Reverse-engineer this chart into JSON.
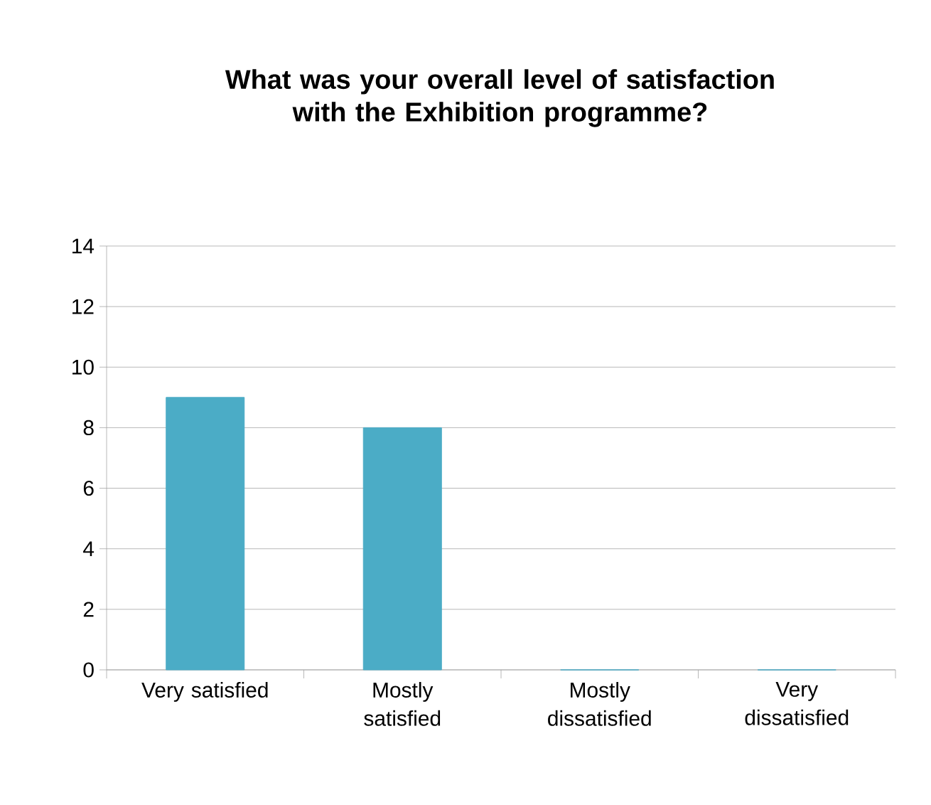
{
  "chart_data": {
    "type": "bar",
    "title": "What was your overall level of satisfaction with the Exhibition programme?",
    "categories": [
      "Very satisfied",
      "Mostly satisfied",
      "Mostly dissatisfied",
      "Very dissatisfied"
    ],
    "values": [
      9,
      8,
      0,
      0
    ],
    "color": "#4bacc6",
    "ylim": [
      0,
      14
    ],
    "yticks": [
      0,
      2,
      4,
      6,
      8,
      10,
      12,
      14
    ],
    "grid": "y"
  }
}
